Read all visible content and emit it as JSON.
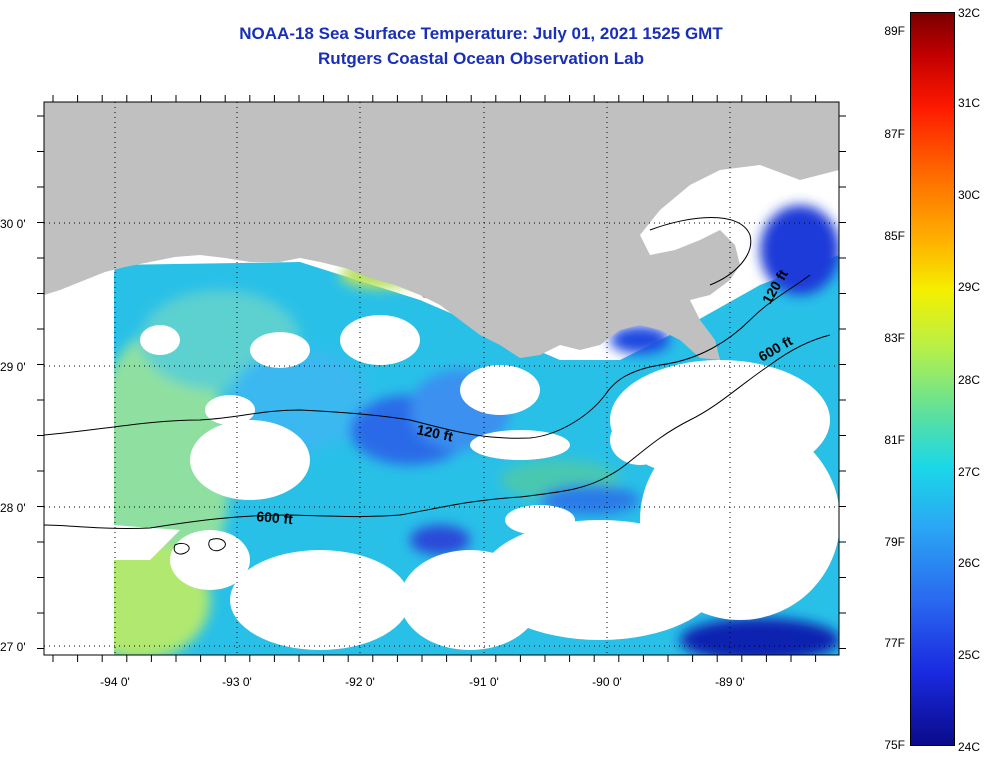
{
  "header": {
    "title": "NOAA-18 Sea Surface Temperature:  July 01, 2021 1525 GMT",
    "subtitle": "Rutgers Coastal Ocean Observation Lab"
  },
  "map": {
    "lat_labels": [
      "30 0'",
      "29 0'",
      "28 0'",
      "27 0'"
    ],
    "lon_labels": [
      "-94 0'",
      "-93 0'",
      "-92 0'",
      "-91 0'",
      "-90 0'",
      "-89 0'"
    ],
    "contours": [
      {
        "label": "120 ft"
      },
      {
        "label": "600 ft"
      },
      {
        "label": "120 ft"
      },
      {
        "label": "600 ft"
      }
    ],
    "colors": {
      "land": "#c0c0c0",
      "cloud": "#ffffff",
      "water_cool": "#1f4fe0",
      "water_mid": "#29b3f0",
      "water_warm": "#aee85a"
    }
  },
  "colorbar": {
    "fahrenheit": [
      "89F",
      "87F",
      "85F",
      "83F",
      "81F",
      "79F",
      "77F",
      "75F"
    ],
    "celsius": [
      "32C",
      "31C",
      "30C",
      "29C",
      "28C",
      "27C",
      "26C",
      "25C",
      "24C"
    ],
    "range_c": [
      24,
      32
    ]
  }
}
